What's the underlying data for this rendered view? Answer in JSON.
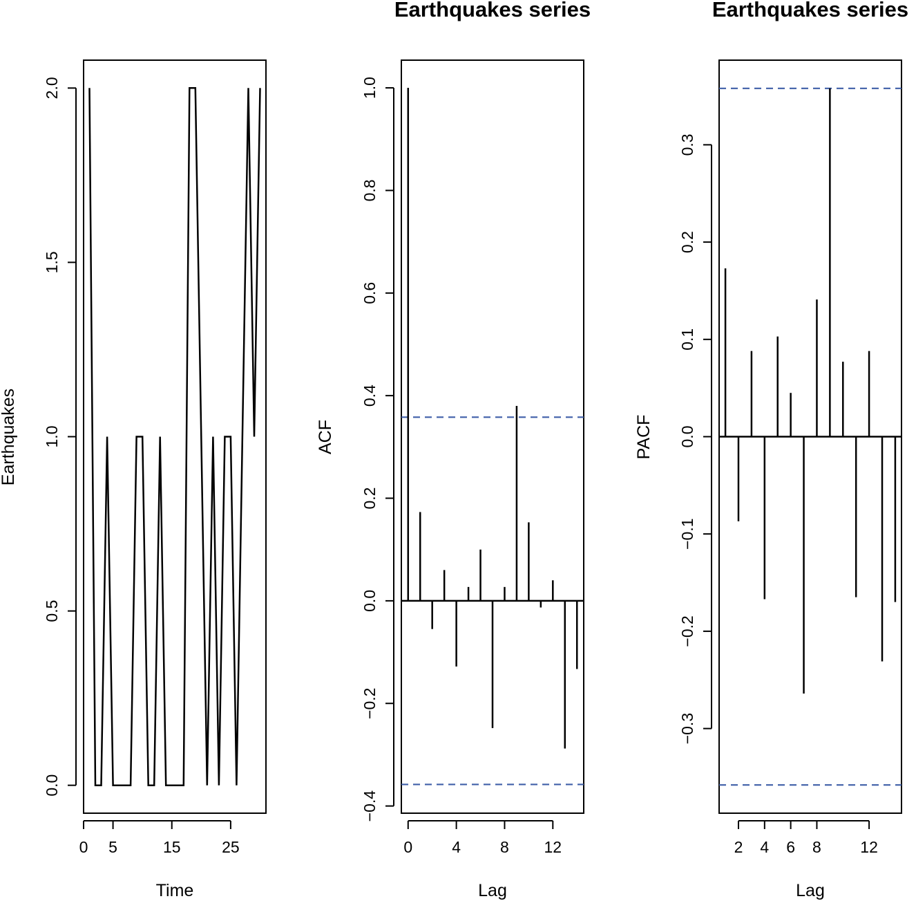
{
  "chart_data": [
    {
      "type": "line",
      "title": "",
      "xlabel": "Time",
      "ylabel": "Earthquakes",
      "x": [
        1,
        2,
        3,
        4,
        5,
        6,
        7,
        8,
        9,
        10,
        11,
        12,
        13,
        14,
        15,
        16,
        17,
        18,
        19,
        20,
        21,
        22,
        23,
        24,
        25,
        26,
        27,
        28,
        29,
        30
      ],
      "values": [
        2,
        0,
        0,
        1,
        0,
        0,
        0,
        0,
        1,
        1,
        0,
        0,
        1,
        0,
        0,
        0,
        0,
        2,
        2,
        1,
        0,
        1,
        0,
        1,
        1,
        0,
        1,
        2,
        1,
        2
      ],
      "xlim": [
        0,
        31
      ],
      "ylim": [
        -0.08,
        2.08
      ],
      "xticks": [
        0,
        5,
        15,
        25
      ],
      "xtick_labels": [
        "0",
        "5",
        "15",
        "25"
      ],
      "yticks": [
        0.0,
        0.5,
        1.0,
        1.5,
        2.0
      ],
      "ytick_labels": [
        "0.0",
        "0.5",
        "1.0",
        "1.5",
        "2.0"
      ]
    },
    {
      "type": "bar",
      "title": "Earthquakes series",
      "xlabel": "Lag",
      "ylabel": "ACF",
      "x": [
        0,
        1,
        2,
        3,
        4,
        5,
        6,
        7,
        8,
        9,
        10,
        11,
        12,
        13,
        14
      ],
      "values": [
        1.0,
        0.173,
        -0.055,
        0.06,
        -0.128,
        0.027,
        0.1,
        -0.248,
        0.027,
        0.38,
        0.153,
        -0.013,
        0.04,
        -0.288,
        -0.133
      ],
      "confidence_bounds": [
        0.358,
        -0.358
      ],
      "xlim": [
        -0.56,
        14.56
      ],
      "ylim": [
        -0.414,
        1.054
      ],
      "xticks": [
        0,
        4,
        8,
        12
      ],
      "xtick_labels": [
        "0",
        "4",
        "8",
        "12"
      ],
      "yticks": [
        -0.4,
        -0.2,
        0.0,
        0.2,
        0.4,
        0.6,
        0.8,
        1.0
      ],
      "ytick_labels": [
        "−0.4",
        "−0.2",
        "0.0",
        "0.2",
        "0.4",
        "0.6",
        "0.8",
        "1.0"
      ]
    },
    {
      "type": "bar",
      "title": "Earthquakes series",
      "xlabel": "Lag",
      "ylabel": "PACF",
      "x": [
        1,
        2,
        3,
        4,
        5,
        6,
        7,
        8,
        9,
        10,
        11,
        12,
        13,
        14
      ],
      "values": [
        0.173,
        -0.087,
        0.088,
        -0.167,
        0.103,
        0.045,
        -0.264,
        0.141,
        0.358,
        0.077,
        -0.165,
        0.088,
        -0.231,
        -0.17
      ],
      "confidence_bounds": [
        0.358,
        -0.358
      ],
      "xlim": [
        0.52,
        14.48
      ],
      "ylim": [
        -0.387,
        0.387
      ],
      "xticks": [
        2,
        4,
        6,
        8,
        12
      ],
      "xtick_labels": [
        "2",
        "4",
        "6",
        "8",
        "12"
      ],
      "yticks": [
        -0.3,
        -0.2,
        -0.1,
        0.0,
        0.1,
        0.2,
        0.3
      ],
      "ytick_labels": [
        "−0.3",
        "−0.2",
        "−0.1",
        "0.0",
        "0.1",
        "0.2",
        "0.3"
      ]
    }
  ],
  "colors": {
    "series": "#000000",
    "confidence": "#3f5fa8",
    "frame": "#000000"
  }
}
